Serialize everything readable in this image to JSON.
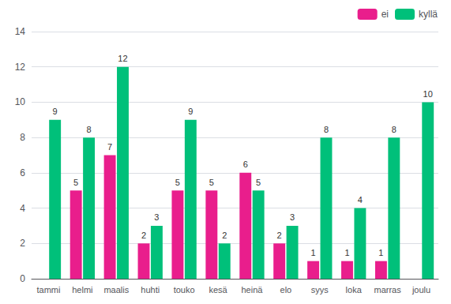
{
  "chart_data": {
    "type": "bar",
    "categories": [
      "tammi",
      "helmi",
      "maalis",
      "huhti",
      "touko",
      "kesä",
      "heinä",
      "elo",
      "syys",
      "loka",
      "marras",
      "joulu"
    ],
    "series": [
      {
        "name": "ei",
        "color": "#e91e8c",
        "values": [
          0,
          5,
          7,
          2,
          5,
          5,
          6,
          2,
          1,
          1,
          1,
          0
        ]
      },
      {
        "name": "kyllä",
        "color": "#00c07a",
        "values": [
          9,
          8,
          12,
          3,
          9,
          2,
          5,
          3,
          8,
          4,
          8,
          10
        ]
      }
    ],
    "ylim": [
      0,
      14
    ],
    "yticks": [
      0,
      2,
      4,
      6,
      8,
      10,
      12,
      14
    ],
    "grid": true,
    "legend": "upper right",
    "data_labels": true
  }
}
